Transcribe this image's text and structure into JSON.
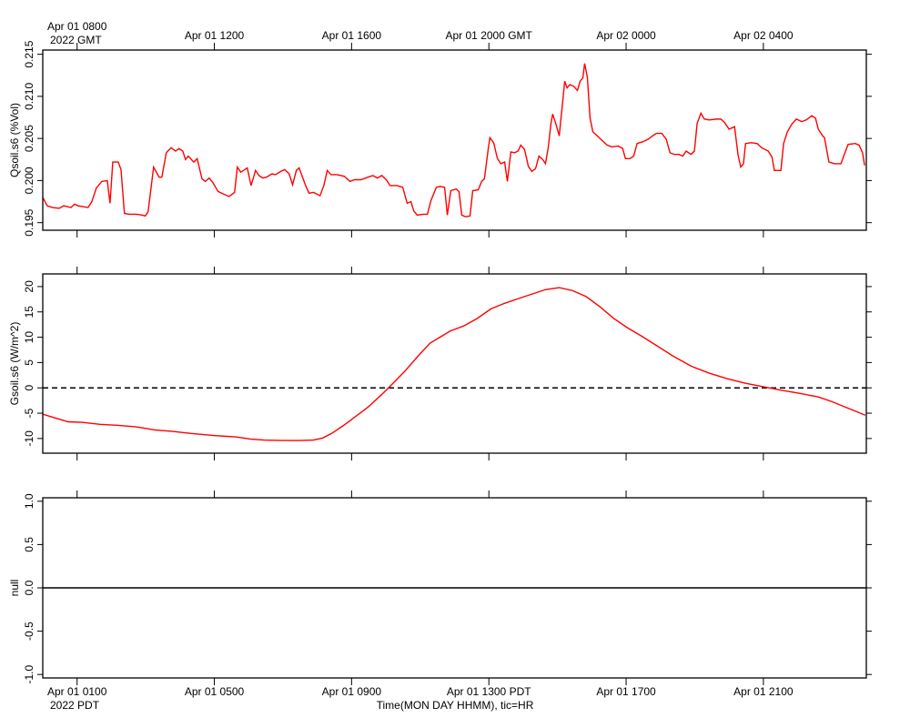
{
  "chart_data": [
    {
      "type": "line",
      "ylabel": "Qsoil.s6 (%Vol)",
      "color": "#ff0000",
      "xlim": [
        0,
        24
      ],
      "ylim": [
        0.1941,
        0.2155
      ],
      "yticks": [
        0.195,
        {
          "value": 0.2,
          "label": "0.200"
        },
        0.205,
        {
          "value": 0.21,
          "label": "0.210"
        },
        0.215
      ],
      "x2ticks": [
        {
          "value": 1,
          "label": "Apr 01 0800"
        },
        {
          "value": 5,
          "label": "Apr 01 1200"
        },
        {
          "value": 9,
          "label": "Apr 01 1600"
        },
        {
          "value": 13,
          "label": "Apr 01 2000 GMT"
        },
        {
          "value": 17,
          "label": "Apr 02 0000"
        },
        {
          "value": 21,
          "label": "Apr 02 0400"
        }
      ],
      "x2_note": "2022 GMT",
      "x": [
        0,
        0.13,
        0.29,
        0.48,
        0.61,
        0.82,
        0.93,
        1.03,
        1.32,
        1.43,
        1.56,
        1.72,
        1.88,
        1.96,
        2.04,
        2.2,
        2.28,
        2.38,
        2.52,
        2.73,
        2.89,
        2.99,
        3.07,
        3.23,
        3.39,
        3.47,
        3.6,
        3.74,
        3.87,
        3.97,
        4.08,
        4.16,
        4.24,
        4.4,
        4.5,
        4.64,
        4.74,
        4.85,
        4.95,
        5.11,
        5.27,
        5.43,
        5.59,
        5.67,
        5.77,
        5.85,
        5.96,
        6.07,
        6.2,
        6.3,
        6.41,
        6.52,
        6.68,
        6.78,
        6.94,
        7.05,
        7.18,
        7.28,
        7.39,
        7.47,
        7.66,
        7.76,
        7.89,
        8.08,
        8.19,
        8.29,
        8.4,
        8.58,
        8.79,
        8.95,
        9.09,
        9.27,
        9.48,
        9.62,
        9.75,
        9.88,
        10.01,
        10.12,
        10.33,
        10.49,
        10.62,
        10.73,
        10.81,
        10.91,
        11.1,
        11.21,
        11.31,
        11.47,
        11.58,
        11.71,
        11.79,
        11.89,
        12.05,
        12.13,
        12.21,
        12.32,
        12.45,
        12.53,
        12.69,
        12.79,
        12.87,
        12.98,
        13.03,
        13.14,
        13.25,
        13.35,
        13.46,
        13.54,
        13.64,
        13.75,
        13.85,
        13.93,
        14.04,
        14.15,
        14.25,
        14.36,
        14.46,
        14.57,
        14.65,
        14.73,
        14.81,
        14.86,
        14.97,
        15.05,
        15.15,
        15.21,
        15.28,
        15.36,
        15.47,
        15.58,
        15.66,
        15.74,
        15.79,
        15.87,
        15.95,
        16.03,
        16.16,
        16.29,
        16.45,
        16.58,
        16.77,
        16.9,
        16.98,
        17.11,
        17.22,
        17.32,
        17.48,
        17.64,
        17.77,
        17.88,
        18.04,
        18.17,
        18.28,
        18.41,
        18.54,
        18.65,
        18.75,
        18.89,
        18.99,
        19.07,
        19.18,
        19.28,
        19.42,
        19.63,
        19.76,
        19.87,
        20,
        20.16,
        20.26,
        20.34,
        20.42,
        20.48,
        20.64,
        20.82,
        20.95,
        21.14,
        21.25,
        21.32,
        21.51,
        21.59,
        21.7,
        21.83,
        21.96,
        22.12,
        22.25,
        22.41,
        22.52,
        22.6,
        22.73,
        22.78,
        22.91,
        23.07,
        23.26,
        23.34,
        23.47,
        23.68,
        23.79,
        23.89,
        23.95
      ],
      "values": [
        0.198,
        0.197,
        0.1968,
        0.1967,
        0.197,
        0.1968,
        0.1972,
        0.197,
        0.1968,
        0.1975,
        0.1991,
        0.1999,
        0.2,
        0.1973,
        0.2022,
        0.2022,
        0.2013,
        0.1961,
        0.196,
        0.196,
        0.1959,
        0.1958,
        0.1963,
        0.2016,
        0.2004,
        0.2004,
        0.2033,
        0.2039,
        0.2035,
        0.2038,
        0.2035,
        0.2025,
        0.2029,
        0.2022,
        0.2026,
        0.2002,
        0.1999,
        0.2003,
        0.1998,
        0.1987,
        0.1984,
        0.1981,
        0.1986,
        0.2016,
        0.201,
        0.2012,
        0.2015,
        0.1994,
        0.2012,
        0.2006,
        0.2003,
        0.2004,
        0.2008,
        0.2007,
        0.2011,
        0.2013,
        0.2008,
        0.1995,
        0.2012,
        0.2015,
        0.1994,
        0.1985,
        0.1986,
        0.1982,
        0.1994,
        0.2012,
        0.2007,
        0.2007,
        0.2005,
        0.1999,
        0.2001,
        0.2001,
        0.2004,
        0.2006,
        0.2003,
        0.2006,
        0.2001,
        0.1994,
        0.1994,
        0.1992,
        0.1973,
        0.1975,
        0.1964,
        0.1959,
        0.196,
        0.196,
        0.1976,
        0.1992,
        0.1993,
        0.1992,
        0.1959,
        0.1988,
        0.199,
        0.1987,
        0.1959,
        0.1957,
        0.1958,
        0.1988,
        0.1989,
        0.1999,
        0.2002,
        0.2037,
        0.2051,
        0.2045,
        0.2026,
        0.202,
        0.2022,
        0.1999,
        0.2034,
        0.2033,
        0.2035,
        0.2042,
        0.2037,
        0.2017,
        0.2011,
        0.2014,
        0.2029,
        0.2025,
        0.202,
        0.2039,
        0.2068,
        0.2079,
        0.2065,
        0.2053,
        0.2093,
        0.2118,
        0.211,
        0.2114,
        0.2112,
        0.2107,
        0.2118,
        0.2122,
        0.2139,
        0.2123,
        0.2074,
        0.2058,
        0.2053,
        0.2048,
        0.2042,
        0.204,
        0.2041,
        0.2038,
        0.2026,
        0.2026,
        0.2029,
        0.2044,
        0.2046,
        0.2049,
        0.2053,
        0.2056,
        0.2056,
        0.2049,
        0.2033,
        0.2031,
        0.2031,
        0.2029,
        0.2035,
        0.2031,
        0.2035,
        0.2068,
        0.208,
        0.2073,
        0.2072,
        0.2073,
        0.2073,
        0.2069,
        0.2061,
        0.2064,
        0.2031,
        0.2016,
        0.202,
        0.2044,
        0.2045,
        0.2044,
        0.2039,
        0.2035,
        0.2028,
        0.2012,
        0.2012,
        0.2044,
        0.2058,
        0.2067,
        0.2073,
        0.207,
        0.2072,
        0.2077,
        0.2074,
        0.2061,
        0.2053,
        0.2051,
        0.2022,
        0.202,
        0.202,
        0.2029,
        0.2043,
        0.2044,
        0.2042,
        0.2033,
        0.2018
      ]
    },
    {
      "type": "line",
      "ylabel": "Gsoil.s6 (W/m^2)",
      "color": "#ff0000",
      "xlim": [
        0,
        24
      ],
      "ylim": [
        -12.9,
        22.5
      ],
      "yticks": [
        -10,
        -5,
        0,
        5,
        10,
        15,
        20
      ],
      "hline": 0,
      "hline_color": "#000000",
      "hline_dashed": true,
      "x": [
        0,
        0.34,
        0.74,
        1.14,
        1.67,
        2.2,
        2.73,
        3.26,
        3.79,
        4.32,
        4.98,
        5.64,
        6.04,
        6.44,
        6.97,
        7.5,
        7.89,
        8.16,
        8.42,
        8.77,
        9.09,
        9.48,
        9.88,
        10.15,
        10.54,
        10.94,
        11.28,
        11.6,
        11.87,
        12.26,
        12.66,
        13.06,
        13.46,
        13.85,
        14.25,
        14.65,
        15.05,
        15.44,
        15.84,
        16.24,
        16.64,
        17.03,
        17.43,
        17.83,
        18.36,
        18.89,
        19.42,
        19.95,
        20.48,
        21.01,
        21.54,
        22.07,
        22.6,
        22.99,
        23.39,
        23.97
      ],
      "values": [
        -5.2,
        -5.9,
        -6.7,
        -6.8,
        -7.2,
        -7.4,
        -7.7,
        -8.3,
        -8.6,
        -9,
        -9.4,
        -9.7,
        -10.1,
        -10.3,
        -10.4,
        -10.4,
        -10.3,
        -9.9,
        -9,
        -7.4,
        -5.8,
        -3.8,
        -1.3,
        0.5,
        3.2,
        6.3,
        8.8,
        10.1,
        11.2,
        12.2,
        13.7,
        15.6,
        16.7,
        17.6,
        18.5,
        19.4,
        19.8,
        19.2,
        18,
        16,
        13.7,
        11.9,
        10.3,
        8.6,
        6.3,
        4.3,
        2.9,
        1.8,
        0.9,
        0.2,
        -0.5,
        -1.1,
        -1.8,
        -2.7,
        -3.8,
        -5.4
      ]
    },
    {
      "type": "line",
      "ylabel": "null",
      "xlim": [
        0,
        24
      ],
      "ylim": [
        -1.04,
        1.04
      ],
      "yticks": [
        {
          "value": -1,
          "label": "-1.0"
        },
        {
          "value": -0.5,
          "label": "-0.5"
        },
        {
          "value": 0,
          "label": "0.0"
        },
        {
          "value": 0.5,
          "label": "0.5"
        },
        {
          "value": 1,
          "label": "1.0"
        }
      ],
      "hline": 0,
      "hline_color": "#000000",
      "hline_dashed": false,
      "xticks": [
        {
          "value": 1,
          "label": "Apr 01 0100"
        },
        {
          "value": 5,
          "label": "Apr 01 0500"
        },
        {
          "value": 9,
          "label": "Apr 01 0900"
        },
        {
          "value": 13,
          "label": "Apr 01 1300 PDT"
        },
        {
          "value": 17,
          "label": "Apr 01 1700"
        },
        {
          "value": 21,
          "label": "Apr 01 2100"
        }
      ],
      "x_note": "2022 PDT",
      "xlabel": "Time(MON DAY HHMM), tic=HR"
    }
  ]
}
